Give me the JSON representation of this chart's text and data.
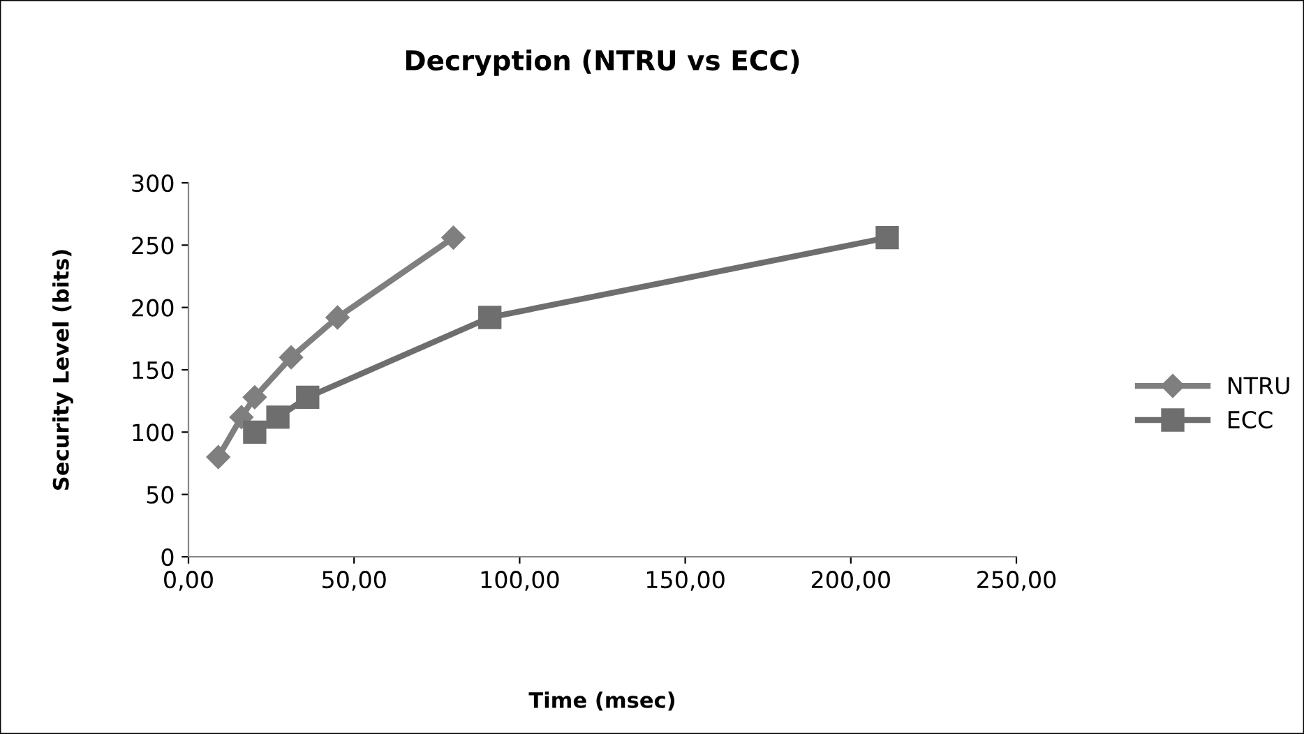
{
  "chart_data": {
    "type": "line",
    "title": "Decryption (NTRU vs ECC)",
    "xlabel": "Time (msec)",
    "ylabel": "Security Level (bits)",
    "xlim": [
      0,
      250
    ],
    "xticks": [
      {
        "value": 0,
        "label": "0,00"
      },
      {
        "value": 50,
        "label": "50,00"
      },
      {
        "value": 100,
        "label": "100,00"
      },
      {
        "value": 150,
        "label": "150,00"
      },
      {
        "value": 200,
        "label": "200,00"
      },
      {
        "value": 250,
        "label": "250,00"
      }
    ],
    "ylim": [
      0,
      300
    ],
    "yticks": [
      0,
      50,
      100,
      150,
      200,
      250,
      300
    ],
    "grid": false,
    "legend": "right",
    "line_style": "solid",
    "series": [
      {
        "name": "NTRU",
        "color": "#7f7f7f",
        "marker": "diamond",
        "x": [
          9,
          16,
          20,
          31,
          45,
          80
        ],
        "values": [
          80,
          112,
          128,
          160,
          192,
          256
        ]
      },
      {
        "name": "ECC",
        "color": "#6e6e6e",
        "marker": "square",
        "x": [
          20,
          27,
          36,
          91,
          211
        ],
        "values": [
          100,
          112,
          128,
          192,
          256
        ]
      }
    ]
  }
}
